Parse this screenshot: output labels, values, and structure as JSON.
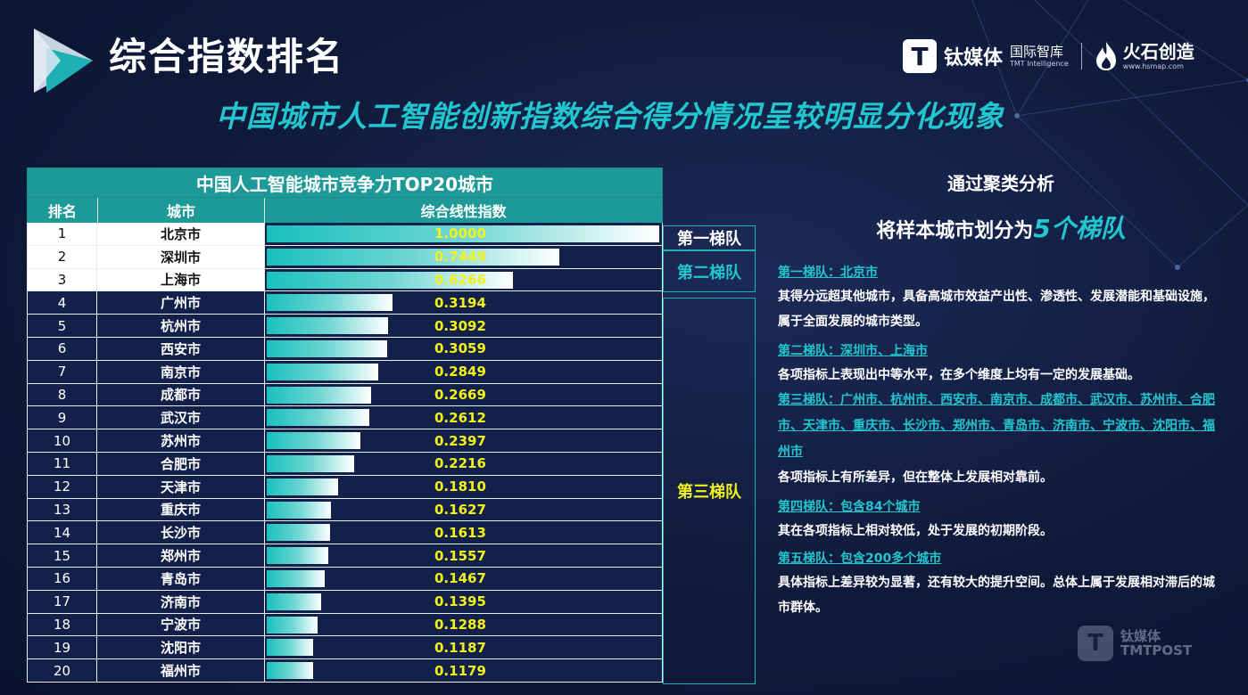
{
  "header": {
    "title": "综合指数排名",
    "subtitle": "中国城市人工智能创新指数综合得分情况呈较明显分化现象"
  },
  "brand": {
    "logo_letter": "T",
    "name": "钛媒体",
    "sub_cn": "国际智库",
    "sub_en": "TMT Intelligence",
    "partner_name": "火石创造",
    "partner_url": "www.hsmap.com"
  },
  "table": {
    "title": "中国人工智能城市竞争力TOP20城市",
    "headers": [
      "排名",
      "城市",
      "综合线性指数"
    ]
  },
  "chart_data": {
    "type": "bar",
    "title": "中国人工智能城市竞争力TOP20城市",
    "orientation": "horizontal",
    "xlim": [
      0,
      1
    ],
    "ranks": [
      1,
      2,
      3,
      4,
      5,
      6,
      7,
      8,
      9,
      10,
      11,
      12,
      13,
      14,
      15,
      16,
      17,
      18,
      19,
      20
    ],
    "categories": [
      "北京市",
      "深圳市",
      "上海市",
      "广州市",
      "杭州市",
      "西安市",
      "南京市",
      "成都市",
      "武汉市",
      "苏州市",
      "合肥市",
      "天津市",
      "重庆市",
      "长沙市",
      "郑州市",
      "青岛市",
      "济南市",
      "宁波市",
      "沈阳市",
      "福州市"
    ],
    "values": [
      1.0,
      0.7449,
      0.6266,
      0.3194,
      0.3092,
      0.3059,
      0.2849,
      0.2669,
      0.2612,
      0.2397,
      0.2216,
      0.181,
      0.1627,
      0.1613,
      0.1557,
      0.1467,
      0.1395,
      0.1288,
      0.1187,
      0.1179
    ],
    "labels": [
      "1.0000",
      "0.7449",
      "0.6266",
      "0.3194",
      "0.3092",
      "0.3059",
      "0.2849",
      "0.2669",
      "0.2612",
      "0.2397",
      "0.2216",
      "0.1810",
      "0.1627",
      "0.1613",
      "0.1557",
      "0.1467",
      "0.1395",
      "0.1288",
      "0.1187",
      "0.1179"
    ]
  },
  "tiers": {
    "tier1": "第一梯队",
    "tier2": "第二梯队",
    "tier3": "第三梯队"
  },
  "analysis": {
    "head1": "通过聚类分析",
    "head2_prefix": "将样本城市划分为",
    "head2_highlight": "5个梯队",
    "sections": [
      {
        "title": "第一梯队：北京市",
        "body": "其得分远超其他城市，具备高城市效益产出性、渗透性、发展潜能和基础设施，属于全面发展的城市类型。"
      },
      {
        "title": "第二梯队：深圳市、上海市",
        "body": "各项指标上表现出中等水平，在多个维度上均有一定的发展基础。"
      },
      {
        "title": "第三梯队：广州市、杭州市、西安市、南京市、成都市、武汉市、苏州市、合肥市、天津市、重庆市、长沙市、郑州市、青岛市、济南市、宁波市、沈阳市、福州市",
        "body": "各项指标上有所差异，但在整体上发展相对靠前。"
      },
      {
        "title": "第四梯队：包含84个城市",
        "body": "其在各项指标上相对较低，处于发展的初期阶段。"
      },
      {
        "title": "第五梯队：包含200多个城市",
        "body": "具体指标上差异较为显著，还有较大的提升空间。总体上属于发展相对滞后的城市群体。"
      }
    ]
  },
  "watermark": {
    "letter": "T",
    "line1": "钛媒体",
    "line2": "TMTPOST"
  },
  "colors": {
    "accent_cyan": "#22c6cf",
    "header_teal": "#1d9a97",
    "value_yellow": "#f2f21a",
    "background": "#0f1a3a"
  }
}
